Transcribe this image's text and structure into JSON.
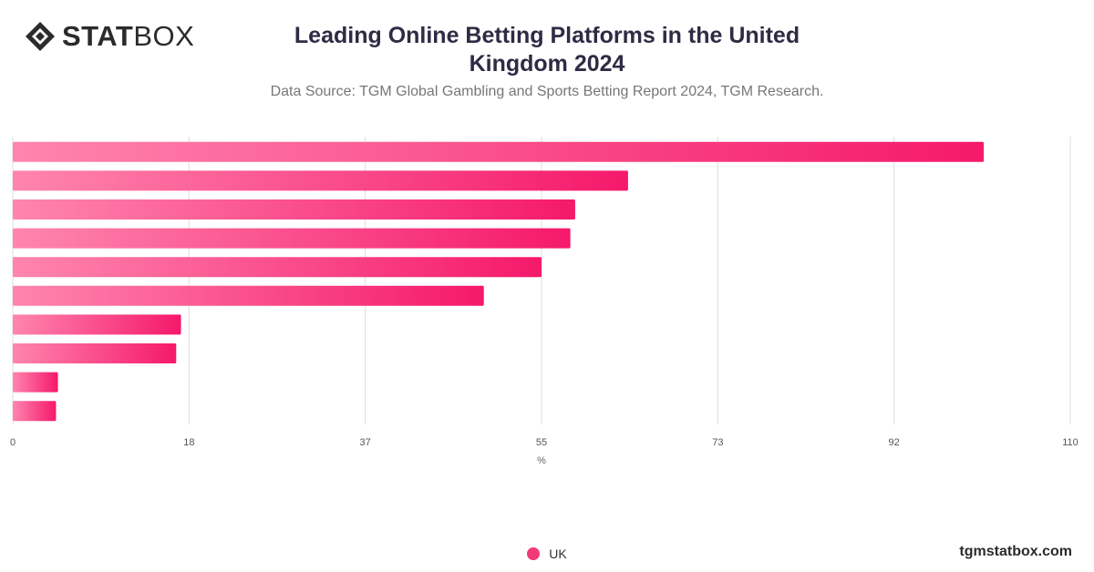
{
  "logo": {
    "text_bold": "STAT",
    "text_regular": "BOX"
  },
  "title_line1": "Leading Online Betting Platforms in the United",
  "title_line2": "Kingdom 2024",
  "subtitle": "Data Source: TGM Global Gambling and Sports Betting Report 2024, TGM Research.",
  "watermark": "tgmstatbox.com",
  "colors": {
    "bar_start": "#ff85ae",
    "bar_end": "#f5196b",
    "grid": "#dddddd",
    "legend": "#f2397a"
  },
  "chart_data": {
    "type": "bar",
    "orientation": "horizontal",
    "series": [
      {
        "name": "UK",
        "values": [
          101,
          64,
          58.5,
          58,
          55,
          49,
          17.5,
          17,
          4.7,
          4.5
        ]
      }
    ],
    "xlabel": "%",
    "xlim": [
      0,
      110
    ],
    "xticks": [
      "0",
      "18",
      "37",
      "55",
      "73",
      "92",
      "110"
    ],
    "grid": true,
    "legend_position": "bottom"
  }
}
